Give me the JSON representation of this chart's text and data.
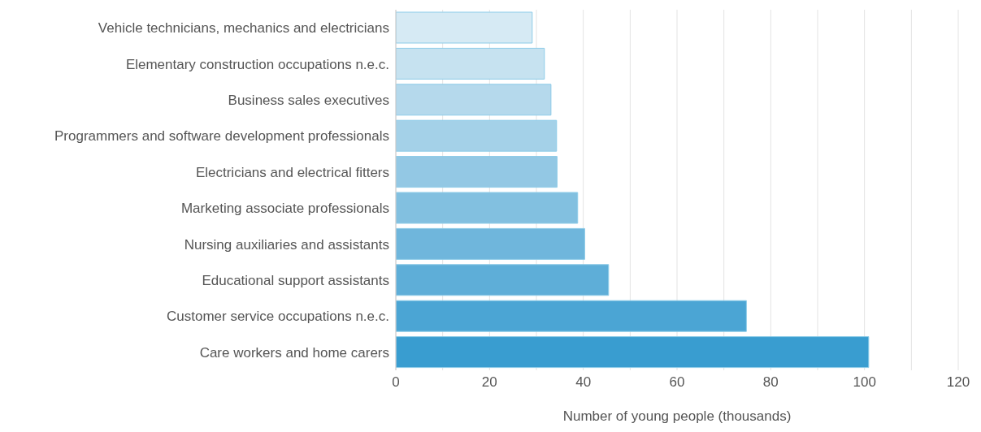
{
  "chart_data": {
    "type": "bar",
    "orientation": "horizontal",
    "xlabel": "Number of young people (thousands)",
    "categories": [
      "Vehicle technicians, mechanics and electricians",
      "Elementary construction occupations n.e.c.",
      "Business sales executives",
      "Programmers and software development professionals",
      "Electricians and electrical fitters",
      "Marketing associate professionals",
      "Nursing auxiliaries and assistants",
      "Educational support assistants",
      "Customer service occupations n.e.c.",
      "Care workers and home carers"
    ],
    "values": [
      29.1,
      31.7,
      33.1,
      34.3,
      34.4,
      38.8,
      40.3,
      45.4,
      74.8,
      100.9
    ],
    "colors": [
      "#d6eaf4",
      "#c6e2f0",
      "#b5d9ec",
      "#a4d1e8",
      "#93c8e4",
      "#82c0e0",
      "#6fb6dc",
      "#5eaed8",
      "#4ba5d4",
      "#399dd0"
    ],
    "xlim": [
      0,
      120
    ],
    "xticks": [
      0,
      {
        "value": 10,
        "label": null
      },
      20,
      {
        "value": 30,
        "label": null
      },
      40,
      {
        "value": 50,
        "label": null
      },
      60,
      {
        "value": 70,
        "label": null
      },
      80,
      {
        "value": 90,
        "label": null
      },
      100,
      {
        "value": 110,
        "label": null
      },
      120
    ],
    "grid": "x",
    "legend": false
  }
}
